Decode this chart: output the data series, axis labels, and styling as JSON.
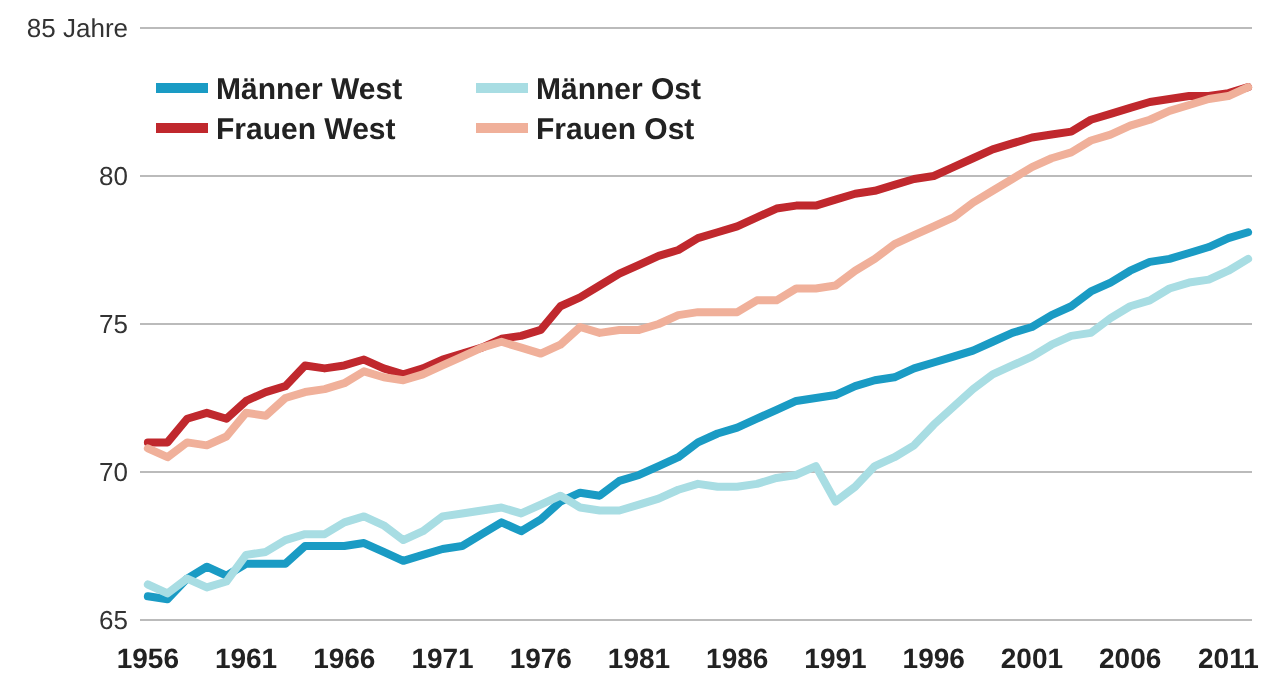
{
  "chart_data": {
    "type": "line",
    "x": [
      1956,
      1957,
      1958,
      1959,
      1960,
      1961,
      1962,
      1963,
      1964,
      1965,
      1966,
      1967,
      1968,
      1969,
      1970,
      1971,
      1972,
      1973,
      1974,
      1975,
      1976,
      1977,
      1978,
      1979,
      1980,
      1981,
      1982,
      1983,
      1984,
      1985,
      1986,
      1987,
      1988,
      1989,
      1990,
      1991,
      1992,
      1993,
      1994,
      1995,
      1996,
      1997,
      1998,
      1999,
      2000,
      2001,
      2002,
      2003,
      2004,
      2005,
      2006,
      2007,
      2008,
      2009,
      2010,
      2011,
      2012
    ],
    "series": [
      {
        "name": "Männer West",
        "color": "#1a9bc4",
        "values": [
          65.8,
          65.7,
          66.4,
          66.8,
          66.5,
          66.9,
          66.9,
          66.9,
          67.5,
          67.5,
          67.5,
          67.6,
          67.3,
          67.0,
          67.2,
          67.4,
          67.5,
          67.9,
          68.3,
          68.0,
          68.4,
          69.0,
          69.3,
          69.2,
          69.7,
          69.9,
          70.2,
          70.5,
          71.0,
          71.3,
          71.5,
          71.8,
          72.1,
          72.4,
          72.5,
          72.6,
          72.9,
          73.1,
          73.2,
          73.5,
          73.7,
          73.9,
          74.1,
          74.4,
          74.7,
          74.9,
          75.3,
          75.6,
          76.1,
          76.4,
          76.8,
          77.1,
          77.2,
          77.4,
          77.6,
          77.9,
          78.1
        ]
      },
      {
        "name": "Männer Ost",
        "color": "#a8dde3",
        "values": [
          66.2,
          65.9,
          66.4,
          66.1,
          66.3,
          67.2,
          67.3,
          67.7,
          67.9,
          67.9,
          68.3,
          68.5,
          68.2,
          67.7,
          68.0,
          68.5,
          68.6,
          68.7,
          68.8,
          68.6,
          68.9,
          69.2,
          68.8,
          68.7,
          68.7,
          68.9,
          69.1,
          69.4,
          69.6,
          69.5,
          69.5,
          69.6,
          69.8,
          69.9,
          70.2,
          69.0,
          69.5,
          70.2,
          70.5,
          70.9,
          71.6,
          72.2,
          72.8,
          73.3,
          73.6,
          73.9,
          74.3,
          74.6,
          74.7,
          75.2,
          75.6,
          75.8,
          76.2,
          76.4,
          76.5,
          76.8,
          77.2
        ]
      },
      {
        "name": "Frauen West",
        "color": "#c0282d",
        "values": [
          71.0,
          71.0,
          71.8,
          72.0,
          71.8,
          72.4,
          72.7,
          72.9,
          73.6,
          73.5,
          73.6,
          73.8,
          73.5,
          73.3,
          73.5,
          73.8,
          74.0,
          74.2,
          74.5,
          74.6,
          74.8,
          75.6,
          75.9,
          76.3,
          76.7,
          77.0,
          77.3,
          77.5,
          77.9,
          78.1,
          78.3,
          78.6,
          78.9,
          79.0,
          79.0,
          79.2,
          79.4,
          79.5,
          79.7,
          79.9,
          80.0,
          80.3,
          80.6,
          80.9,
          81.1,
          81.3,
          81.4,
          81.5,
          81.9,
          82.1,
          82.3,
          82.5,
          82.6,
          82.7,
          82.7,
          82.8,
          83.0
        ]
      },
      {
        "name": "Frauen Ost",
        "color": "#f0b09a",
        "values": [
          70.8,
          70.5,
          71.0,
          70.9,
          71.2,
          72.0,
          71.9,
          72.5,
          72.7,
          72.8,
          73.0,
          73.4,
          73.2,
          73.1,
          73.3,
          73.6,
          73.9,
          74.2,
          74.4,
          74.2,
          74.0,
          74.3,
          74.9,
          74.7,
          74.8,
          74.8,
          75.0,
          75.3,
          75.4,
          75.4,
          75.4,
          75.8,
          75.8,
          76.2,
          76.2,
          76.3,
          76.8,
          77.2,
          77.7,
          78.0,
          78.3,
          78.6,
          79.1,
          79.5,
          79.9,
          80.3,
          80.6,
          80.8,
          81.2,
          81.4,
          81.7,
          81.9,
          82.2,
          82.4,
          82.6,
          82.7,
          83.0
        ]
      }
    ],
    "xlim": [
      1955.6,
      2012.2
    ],
    "xticks": [
      1956,
      1961,
      1966,
      1971,
      1976,
      1981,
      1986,
      1991,
      1996,
      2001,
      2006,
      2011
    ],
    "ylim": [
      65,
      85
    ],
    "yticks": [
      65,
      70,
      75,
      80,
      {
        "value": 85,
        "label": "85 Jahre"
      }
    ],
    "grid": "y",
    "legend": "top left",
    "marker": "none",
    "line_style": "solid"
  }
}
